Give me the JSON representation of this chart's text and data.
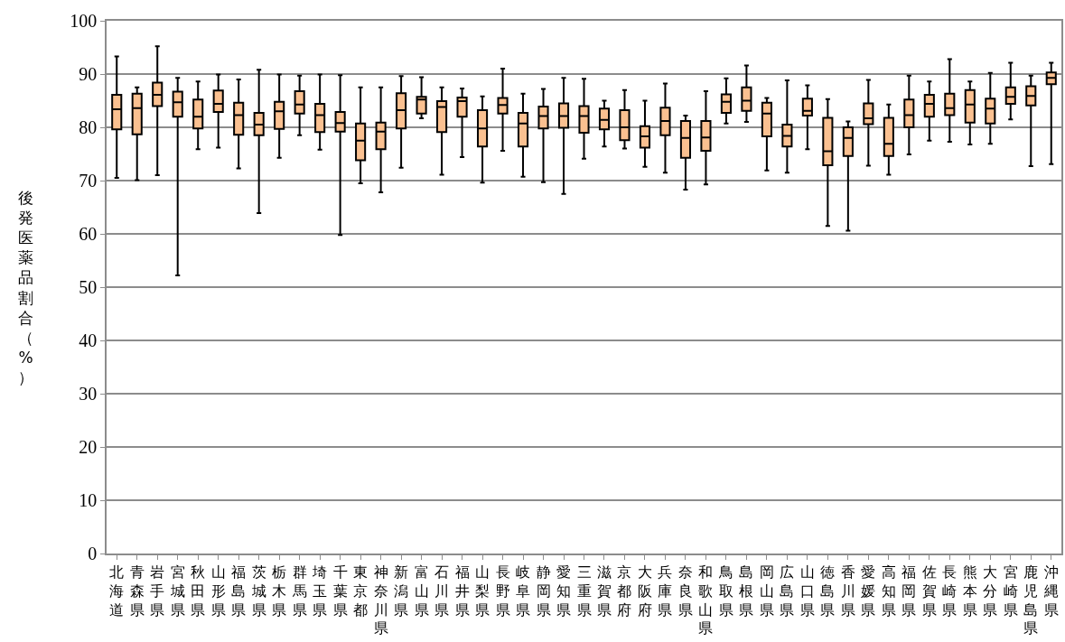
{
  "chart_data": {
    "type": "box",
    "ylabel": "後発医薬品割合（%）",
    "categories": [
      "北海道",
      "青森県",
      "岩手県",
      "宮城県",
      "秋田県",
      "山形県",
      "福島県",
      "茨城県",
      "栃木県",
      "群馬県",
      "埼玉県",
      "千葉県",
      "東京都",
      "神奈川県",
      "新潟県",
      "富山県",
      "石川県",
      "福井県",
      "山梨県",
      "長野県",
      "岐阜県",
      "静岡県",
      "愛知県",
      "三重県",
      "滋賀県",
      "京都府",
      "大阪府",
      "兵庫県",
      "奈良県",
      "和歌山県",
      "鳥取県",
      "島根県",
      "岡山県",
      "広島県",
      "山口県",
      "徳島県",
      "香川県",
      "愛媛県",
      "高知県",
      "福岡県",
      "佐賀県",
      "長崎県",
      "熊本県",
      "大分県",
      "宮崎県",
      "鹿児島県",
      "沖縄県"
    ],
    "color": "#fac090",
    "boxes": [
      {
        "low": 70.5,
        "q1": 79.6,
        "median": 83.4,
        "q3": 86.1,
        "high": 93.3
      },
      {
        "low": 70.1,
        "q1": 78.7,
        "median": 83.6,
        "q3": 86.3,
        "high": 87.5
      },
      {
        "low": 71.0,
        "q1": 84.0,
        "median": 86.1,
        "q3": 88.4,
        "high": 95.2
      },
      {
        "low": 52.2,
        "q1": 82.0,
        "median": 84.7,
        "q3": 86.7,
        "high": 89.3
      },
      {
        "low": 75.9,
        "q1": 79.8,
        "median": 82.0,
        "q3": 85.2,
        "high": 88.6
      },
      {
        "low": 76.2,
        "q1": 82.9,
        "median": 84.4,
        "q3": 86.9,
        "high": 89.9
      },
      {
        "low": 72.3,
        "q1": 78.6,
        "median": 82.3,
        "q3": 84.6,
        "high": 89.0
      },
      {
        "low": 63.9,
        "q1": 78.5,
        "median": 80.5,
        "q3": 82.7,
        "high": 90.8
      },
      {
        "low": 74.3,
        "q1": 79.7,
        "median": 83.0,
        "q3": 84.8,
        "high": 89.9
      },
      {
        "low": 78.5,
        "q1": 82.6,
        "median": 84.3,
        "q3": 86.8,
        "high": 89.7
      },
      {
        "low": 75.8,
        "q1": 79.1,
        "median": 82.3,
        "q3": 84.4,
        "high": 89.9
      },
      {
        "low": 59.8,
        "q1": 79.2,
        "median": 80.8,
        "q3": 82.9,
        "high": 89.8
      },
      {
        "low": 69.5,
        "q1": 73.8,
        "median": 77.5,
        "q3": 80.7,
        "high": 87.5
      },
      {
        "low": 67.8,
        "q1": 75.9,
        "median": 79.2,
        "q3": 80.9,
        "high": 87.5
      },
      {
        "low": 72.4,
        "q1": 79.8,
        "median": 83.2,
        "q3": 86.4,
        "high": 89.6
      },
      {
        "low": 81.7,
        "q1": 82.6,
        "median": 85.2,
        "q3": 85.7,
        "high": 89.4
      },
      {
        "low": 71.1,
        "q1": 79.1,
        "median": 83.8,
        "q3": 84.9,
        "high": 87.5
      },
      {
        "low": 74.4,
        "q1": 82.0,
        "median": 84.9,
        "q3": 85.6,
        "high": 87.3
      },
      {
        "low": 69.6,
        "q1": 76.4,
        "median": 79.8,
        "q3": 83.2,
        "high": 85.8
      },
      {
        "low": 75.6,
        "q1": 82.6,
        "median": 84.2,
        "q3": 85.5,
        "high": 91.0
      },
      {
        "low": 70.7,
        "q1": 76.4,
        "median": 80.7,
        "q3": 82.7,
        "high": 86.3
      },
      {
        "low": 69.7,
        "q1": 79.8,
        "median": 82.1,
        "q3": 83.9,
        "high": 87.2
      },
      {
        "low": 67.5,
        "q1": 79.9,
        "median": 82.1,
        "q3": 84.5,
        "high": 89.3
      },
      {
        "low": 74.1,
        "q1": 79.0,
        "median": 82.1,
        "q3": 84.0,
        "high": 89.1
      },
      {
        "low": 76.4,
        "q1": 79.6,
        "median": 81.4,
        "q3": 83.5,
        "high": 85.0
      },
      {
        "low": 76.0,
        "q1": 77.6,
        "median": 80.0,
        "q3": 83.2,
        "high": 87.0
      },
      {
        "low": 72.6,
        "q1": 76.2,
        "median": 78.3,
        "q3": 80.2,
        "high": 85.0
      },
      {
        "low": 71.5,
        "q1": 78.5,
        "median": 81.2,
        "q3": 83.7,
        "high": 88.2
      },
      {
        "low": 68.3,
        "q1": 74.3,
        "median": 78.0,
        "q3": 81.2,
        "high": 82.2
      },
      {
        "low": 69.3,
        "q1": 75.6,
        "median": 78.1,
        "q3": 81.2,
        "high": 86.8
      },
      {
        "low": 80.7,
        "q1": 82.7,
        "median": 84.8,
        "q3": 86.2,
        "high": 89.2
      },
      {
        "low": 81.0,
        "q1": 83.1,
        "median": 85.0,
        "q3": 87.5,
        "high": 91.6
      },
      {
        "low": 71.9,
        "q1": 78.3,
        "median": 82.6,
        "q3": 84.6,
        "high": 85.5
      },
      {
        "low": 71.5,
        "q1": 76.4,
        "median": 78.4,
        "q3": 80.5,
        "high": 88.8
      },
      {
        "low": 75.9,
        "q1": 82.2,
        "median": 83.1,
        "q3": 85.4,
        "high": 87.9
      },
      {
        "low": 61.5,
        "q1": 72.9,
        "median": 75.5,
        "q3": 81.8,
        "high": 85.3
      },
      {
        "low": 60.6,
        "q1": 74.6,
        "median": 78.0,
        "q3": 80.0,
        "high": 81.1
      },
      {
        "low": 72.8,
        "q1": 80.6,
        "median": 81.7,
        "q3": 84.5,
        "high": 88.9
      },
      {
        "low": 71.1,
        "q1": 74.6,
        "median": 76.9,
        "q3": 81.8,
        "high": 84.3
      },
      {
        "low": 74.9,
        "q1": 80.0,
        "median": 82.3,
        "q3": 85.2,
        "high": 89.7
      },
      {
        "low": 77.5,
        "q1": 82.0,
        "median": 84.4,
        "q3": 86.1,
        "high": 88.6
      },
      {
        "low": 77.3,
        "q1": 82.3,
        "median": 83.6,
        "q3": 86.3,
        "high": 92.8
      },
      {
        "low": 76.8,
        "q1": 80.9,
        "median": 84.3,
        "q3": 87.0,
        "high": 88.6
      },
      {
        "low": 76.9,
        "q1": 80.7,
        "median": 83.5,
        "q3": 85.4,
        "high": 90.2
      },
      {
        "low": 81.5,
        "q1": 84.4,
        "median": 85.7,
        "q3": 87.5,
        "high": 92.1
      },
      {
        "low": 72.7,
        "q1": 84.1,
        "median": 85.9,
        "q3": 87.7,
        "high": 89.7
      },
      {
        "low": 73.1,
        "q1": 88.1,
        "median": 89.3,
        "q3": 90.3,
        "high": 92.1
      }
    ],
    "ylim": [
      0,
      100
    ],
    "yticks": [
      0,
      10,
      20,
      30,
      40,
      50,
      60,
      70,
      80,
      90,
      100
    ],
    "grid": "y"
  }
}
